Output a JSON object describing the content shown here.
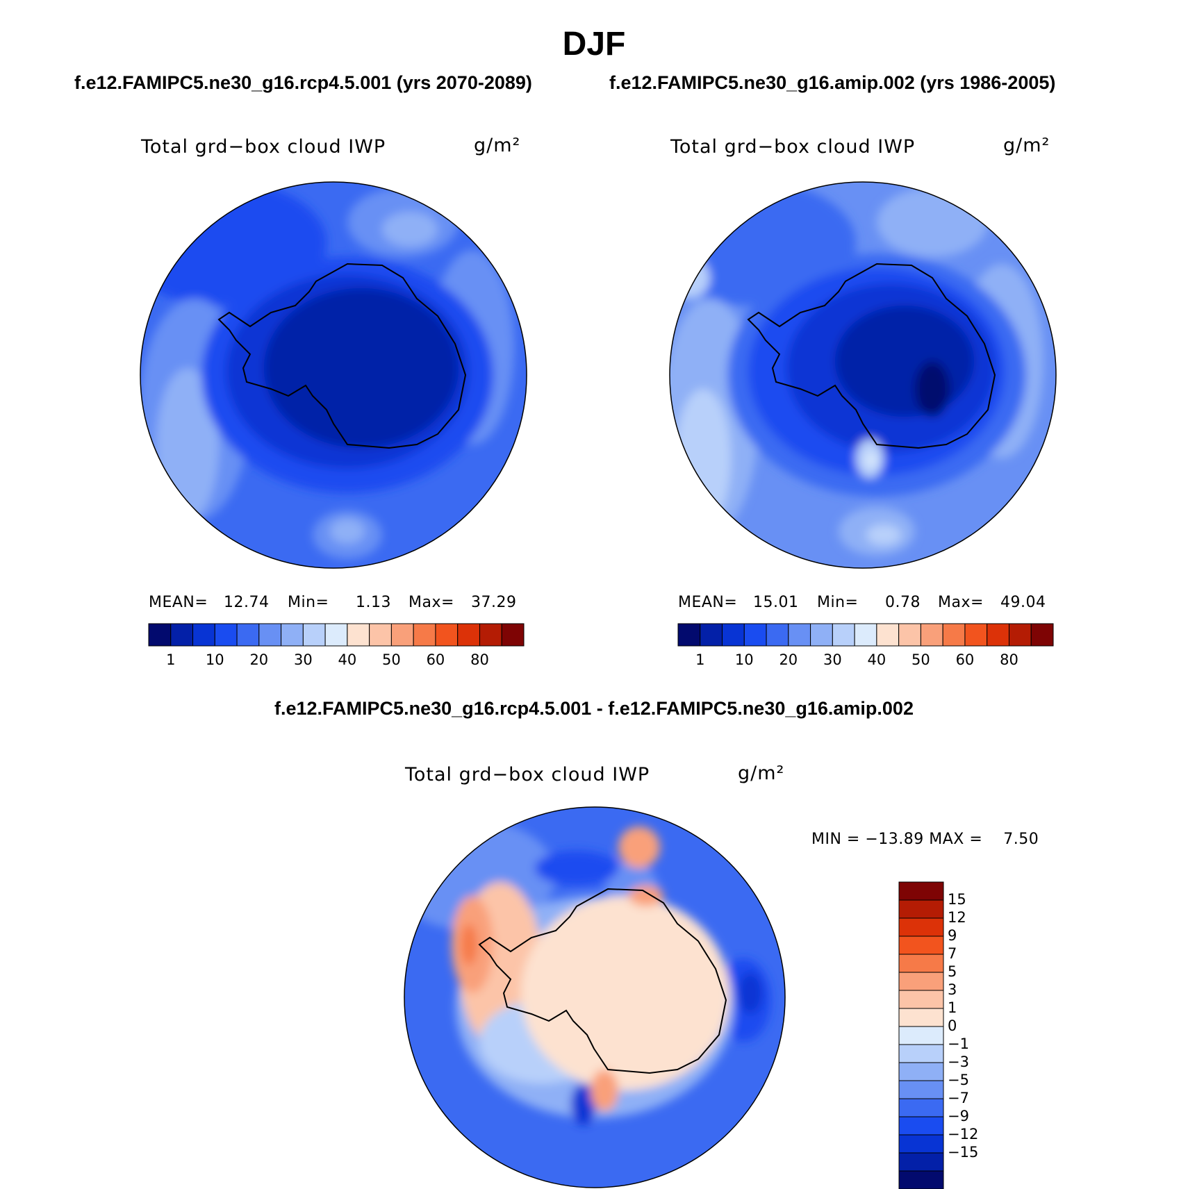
{
  "header": {
    "title": "DJF",
    "case1_title": "f.e12.FAMIPC5.ne30_g16.rcp4.5.001 (yrs 2070-2089)",
    "case2_title": "f.e12.FAMIPC5.ne30_g16.amip.002 (yrs 1986-2005)",
    "diff_title": "f.e12.FAMIPC5.ne30_g16.rcp4.5.001 - f.e12.FAMIPC5.ne30_g16.amip.002"
  },
  "panels": {
    "p1": {
      "variable": "Total grd−box cloud IWP",
      "units": "g/m²",
      "mean_label": "MEAN=",
      "mean": "12.74",
      "min_label": "Min=",
      "min": "1.13",
      "max_label": "Max=",
      "max": "37.29"
    },
    "p2": {
      "variable": "Total grd−box cloud IWP",
      "units": "g/m²",
      "mean_label": "MEAN=",
      "mean": "15.01",
      "min_label": "Min=",
      "min": "0.78",
      "max_label": "Max=",
      "max": "49.04"
    },
    "p3": {
      "variable": "Total grd−box cloud IWP",
      "units": "g/m²",
      "minmax": "MIN = −13.89 MAX =    7.50"
    }
  },
  "colorbar_abs": {
    "colors": [
      "#020a6e",
      "#0320a8",
      "#0834d4",
      "#1a4cf0",
      "#3b6af2",
      "#6890f4",
      "#8fb0f6",
      "#b8d0fa",
      "#dcebfc",
      "#fde2d0",
      "#fcc4a8",
      "#f9a07a",
      "#f67a48",
      "#f2541e",
      "#dc3208",
      "#b41c04",
      "#7e0404"
    ],
    "labels": [
      "1",
      "10",
      "20",
      "30",
      "40",
      "50",
      "60",
      "80"
    ]
  },
  "colorbar_diff": {
    "colors": [
      "#7e0404",
      "#b41c04",
      "#dc3208",
      "#f2541e",
      "#f67a48",
      "#f9a07a",
      "#fcc4a8",
      "#fde2d0",
      "#dcebfc",
      "#b8d0fa",
      "#8fb0f6",
      "#6890f4",
      "#3b6af2",
      "#1a4cf0",
      "#0834d4",
      "#0320a8",
      "#020a6e"
    ],
    "labels": [
      "15",
      "12",
      "9",
      "7",
      "5",
      "3",
      "1",
      "0",
      "−1",
      "−3",
      "−5",
      "−7",
      "−9",
      "−12",
      "−15"
    ]
  }
}
